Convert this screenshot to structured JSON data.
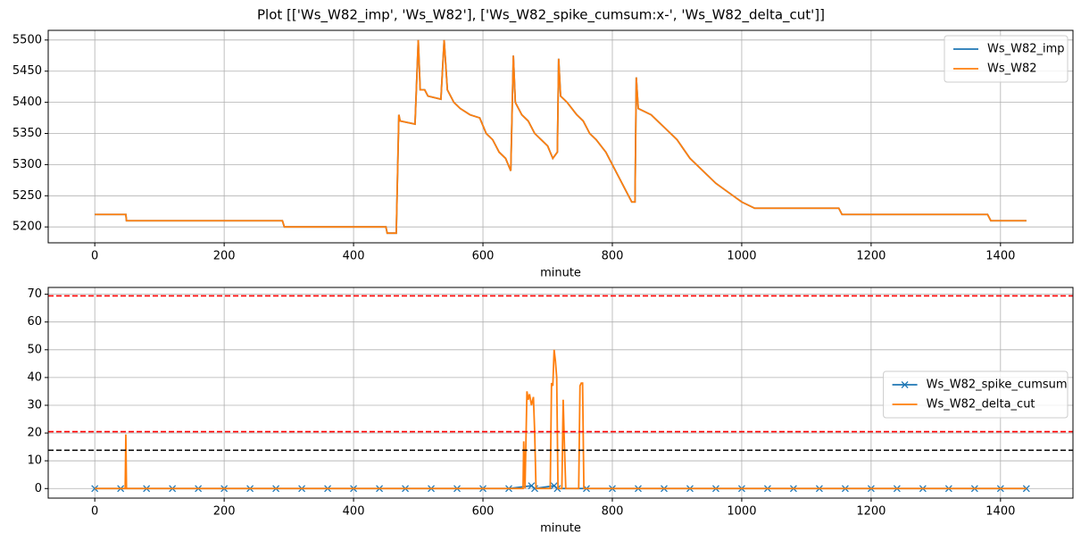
{
  "title": "Plot [['Ws_W82_imp', 'Ws_W82'], ['Ws_W82_spike_cumsum:x-', 'Ws_W82_delta_cut']]",
  "chart_data": [
    {
      "type": "line",
      "xlabel": "minute",
      "legend": "upper right",
      "grid": true,
      "xlim": [
        -72,
        1512
      ],
      "xticks": [
        0,
        200,
        400,
        600,
        800,
        1000,
        1200,
        1400
      ],
      "ylim": [
        5174.5,
        5515.5
      ],
      "yticks": [
        5200,
        5250,
        5300,
        5350,
        5400,
        5450,
        5500
      ],
      "x": [
        0,
        48,
        49,
        290,
        293,
        450,
        452,
        466,
        470,
        472,
        495,
        500,
        503,
        510,
        515,
        535,
        540,
        545,
        555,
        565,
        580,
        595,
        605,
        615,
        625,
        635,
        643,
        647,
        650,
        660,
        670,
        680,
        690,
        700,
        708,
        715,
        717,
        720,
        730,
        745,
        755,
        765,
        775,
        790,
        800,
        810,
        820,
        830,
        835,
        837,
        840,
        860,
        880,
        900,
        920,
        940,
        960,
        980,
        1000,
        1020,
        1150,
        1155,
        1380,
        1385,
        1440
      ],
      "series": [
        {
          "name": "Ws_W82_imp",
          "color": "#1f77b4",
          "values": [
            5220,
            5220,
            5210,
            5210,
            5200,
            5200,
            5190,
            5190,
            5380,
            5370,
            5365,
            5500,
            5420,
            5420,
            5410,
            5405,
            5500,
            5420,
            5400,
            5390,
            5380,
            5375,
            5350,
            5340,
            5320,
            5310,
            5290,
            5475,
            5400,
            5380,
            5370,
            5350,
            5340,
            5330,
            5310,
            5320,
            5470,
            5410,
            5400,
            5380,
            5370,
            5350,
            5340,
            5320,
            5300,
            5280,
            5260,
            5240,
            5240,
            5440,
            5390,
            5380,
            5360,
            5340,
            5310,
            5290,
            5270,
            5255,
            5240,
            5230,
            5230,
            5220,
            5220,
            5210,
            5210
          ]
        },
        {
          "name": "Ws_W82",
          "color": "#ff7f0e",
          "values": [
            5220,
            5220,
            5210,
            5210,
            5200,
            5200,
            5190,
            5190,
            5380,
            5370,
            5365,
            5500,
            5420,
            5420,
            5410,
            5405,
            5500,
            5420,
            5400,
            5390,
            5380,
            5375,
            5350,
            5340,
            5320,
            5310,
            5290,
            5475,
            5400,
            5380,
            5370,
            5350,
            5340,
            5330,
            5310,
            5320,
            5470,
            5410,
            5400,
            5380,
            5370,
            5350,
            5340,
            5320,
            5300,
            5280,
            5260,
            5240,
            5240,
            5440,
            5390,
            5380,
            5360,
            5340,
            5310,
            5290,
            5270,
            5255,
            5240,
            5230,
            5230,
            5220,
            5220,
            5210,
            5210
          ]
        }
      ]
    },
    {
      "type": "line",
      "xlabel": "minute",
      "legend": "center right",
      "grid": true,
      "xlim": [
        -72,
        1512
      ],
      "xticks": [
        0,
        200,
        400,
        600,
        800,
        1000,
        1200,
        1400
      ],
      "ylim": [
        -3.45,
        72.45
      ],
      "yticks": [
        0,
        10,
        20,
        30,
        40,
        50,
        60,
        70
      ],
      "hlines": [
        {
          "value": 69.4,
          "color": "#ff0000"
        },
        {
          "value": 20.5,
          "color": "#ff0000"
        },
        {
          "value": 13.8,
          "color": "#000000"
        }
      ],
      "series": [
        {
          "name": "Ws_W82_spike_cumsum",
          "color": "#1f77b4",
          "marker": "x",
          "x": [
            0,
            40,
            80,
            120,
            160,
            200,
            240,
            280,
            320,
            360,
            400,
            440,
            480,
            520,
            560,
            600,
            640,
            675,
            680,
            710,
            715,
            760,
            800,
            840,
            880,
            920,
            960,
            1000,
            1040,
            1080,
            1120,
            1160,
            1200,
            1240,
            1280,
            1320,
            1360,
            1400,
            1440
          ],
          "values": [
            0,
            0,
            0,
            0,
            0,
            0,
            0,
            0,
            0,
            0,
            0,
            0,
            0,
            0,
            0,
            0,
            0,
            1,
            0,
            1,
            0,
            0,
            0,
            0,
            0,
            0,
            0,
            0,
            0,
            0,
            0,
            0,
            0,
            0,
            0,
            0,
            0,
            0,
            0
          ]
        },
        {
          "name": "Ws_W82_delta_cut",
          "color": "#ff7f0e",
          "x": [
            0,
            47,
            48,
            49,
            662,
            663,
            665,
            668,
            670,
            672,
            675,
            678,
            680,
            682,
            704,
            706,
            708,
            710,
            712,
            714,
            716,
            718,
            722,
            724,
            726,
            728,
            748,
            750,
            752,
            754,
            756,
            1440
          ],
          "values": [
            0,
            0,
            19.5,
            0,
            0,
            17,
            0,
            35,
            32,
            34,
            30,
            33,
            20,
            0,
            0,
            38,
            37,
            50,
            46,
            40,
            0,
            0,
            0,
            32,
            15,
            0,
            0,
            37,
            38,
            38,
            0,
            0
          ]
        }
      ]
    }
  ]
}
